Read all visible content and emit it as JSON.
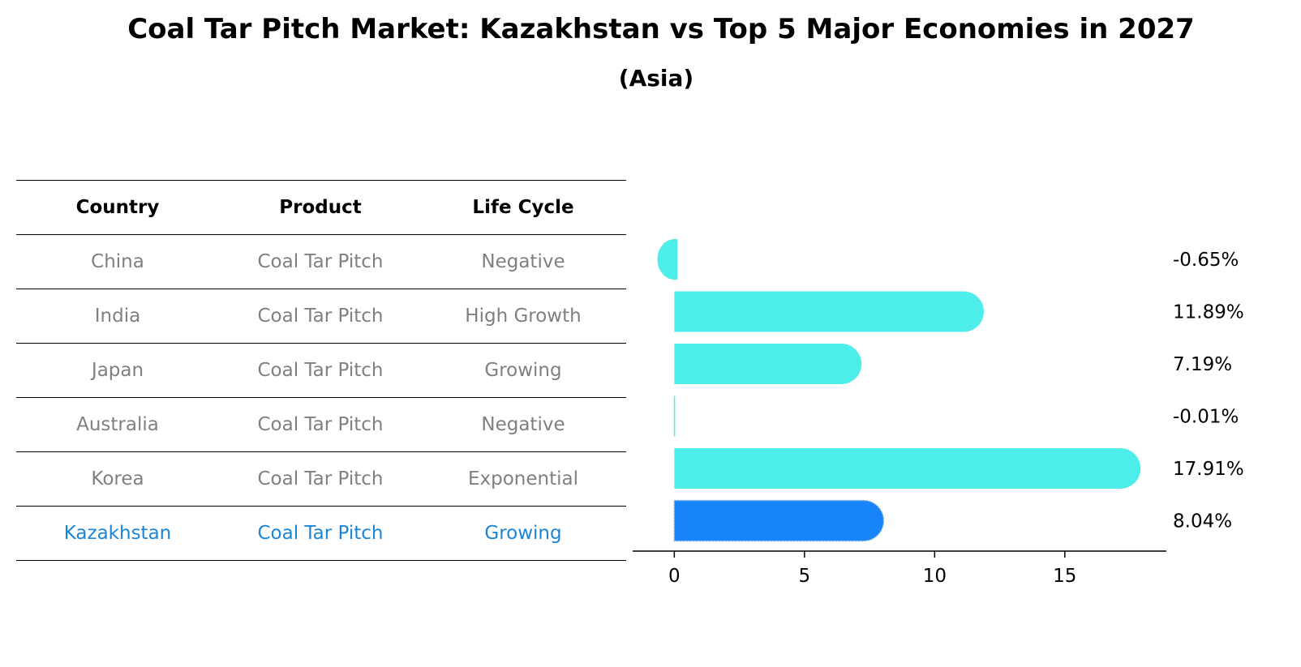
{
  "title": "Coal Tar Pitch Market: Kazakhstan vs Top 5 Major Economies in 2027",
  "subtitle": "(Asia)",
  "table": {
    "headers": [
      "Country",
      "Product",
      "Life Cycle"
    ],
    "rows": [
      {
        "country": "China",
        "product": "Coal Tar Pitch",
        "life_cycle": "Negative"
      },
      {
        "country": "India",
        "product": "Coal Tar Pitch",
        "life_cycle": "High Growth"
      },
      {
        "country": "Japan",
        "product": "Coal Tar Pitch",
        "life_cycle": "Growing"
      },
      {
        "country": "Australia",
        "product": "Coal Tar Pitch",
        "life_cycle": "Negative"
      },
      {
        "country": "Korea",
        "product": "Coal Tar Pitch",
        "life_cycle": "Exponential"
      },
      {
        "country": "Kazakhstan",
        "product": "Coal Tar Pitch",
        "life_cycle": "Growing"
      }
    ],
    "highlight_row": 5
  },
  "chart_data": {
    "type": "bar",
    "orientation": "horizontal",
    "categories": [
      "China",
      "India",
      "Japan",
      "Australia",
      "Korea",
      "Kazakhstan"
    ],
    "values": [
      -0.65,
      11.89,
      7.19,
      -0.01,
      17.91,
      8.04
    ],
    "value_labels": [
      "-0.65%",
      "11.89%",
      "7.19%",
      "-0.01%",
      "17.91%",
      "8.04%"
    ],
    "xlim": [
      -1.6,
      18.9
    ],
    "xticks": [
      0,
      5,
      10,
      15
    ],
    "grid": false,
    "colors": {
      "default": "#4deeea",
      "highlight": "#1785f7"
    },
    "highlight_index": 5
  }
}
